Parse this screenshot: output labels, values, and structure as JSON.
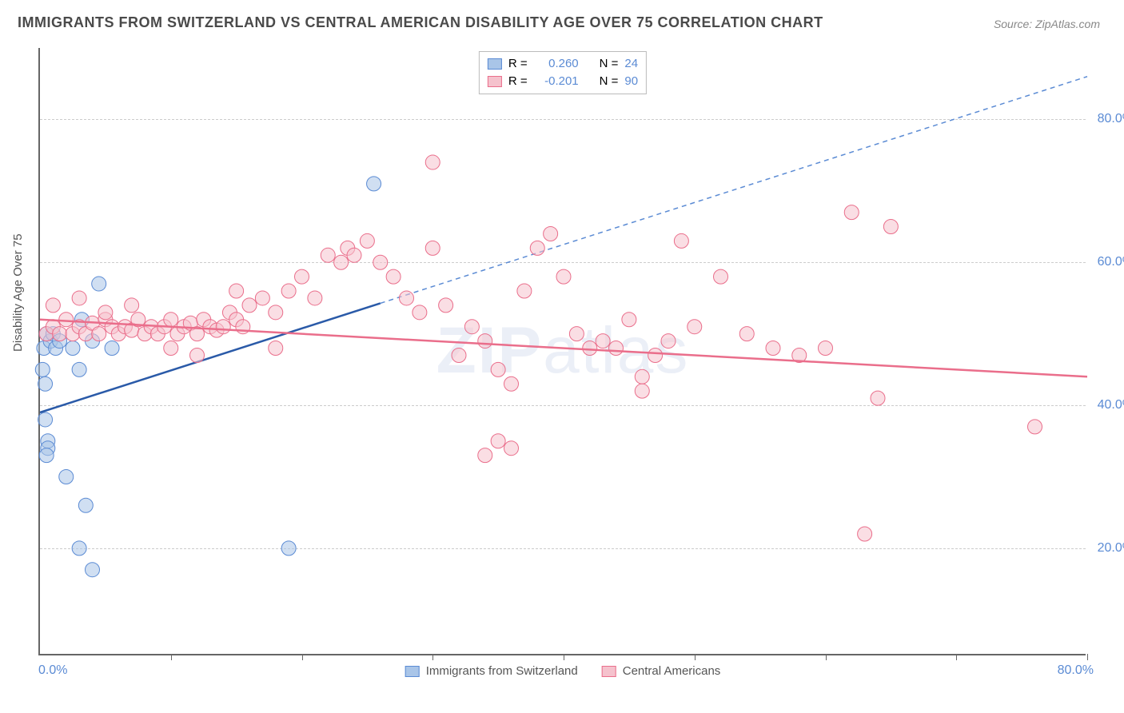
{
  "title": "IMMIGRANTS FROM SWITZERLAND VS CENTRAL AMERICAN DISABILITY AGE OVER 75 CORRELATION CHART",
  "source": "Source: ZipAtlas.com",
  "watermark_a": "ZIP",
  "watermark_b": "atlas",
  "ylabel": "Disability Age Over 75",
  "chart": {
    "type": "scatter",
    "background_color": "#ffffff",
    "grid_color": "#cccccc",
    "axis_color": "#666666",
    "tick_label_color": "#5b8bd4",
    "xlim": [
      0,
      80
    ],
    "ylim": [
      5,
      90
    ],
    "xticks_minor": [
      10,
      20,
      30,
      40,
      50,
      60,
      70,
      80
    ],
    "xtick_labels": {
      "left": "0.0%",
      "right": "80.0%"
    },
    "ytick_labels": [
      {
        "v": 20,
        "label": "20.0%"
      },
      {
        "v": 40,
        "label": "40.0%"
      },
      {
        "v": 60,
        "label": "60.0%"
      },
      {
        "v": 80,
        "label": "80.0%"
      }
    ],
    "marker_radius": 9,
    "marker_opacity": 0.55,
    "series": [
      {
        "name": "Immigrants from Switzerland",
        "short": "switzerland",
        "fill": "#a9c5e8",
        "stroke": "#5b8bd4",
        "R": "0.260",
        "N": "24",
        "points": [
          [
            0.3,
            48
          ],
          [
            0.5,
            50
          ],
          [
            0.8,
            49
          ],
          [
            1.0,
            50
          ],
          [
            0.2,
            45
          ],
          [
            0.4,
            43
          ],
          [
            1.2,
            48
          ],
          [
            1.5,
            49
          ],
          [
            0.6,
            35
          ],
          [
            0.6,
            34
          ],
          [
            0.5,
            33
          ],
          [
            2.0,
            30
          ],
          [
            3.5,
            26
          ],
          [
            3.0,
            20
          ],
          [
            4.0,
            17
          ],
          [
            2.5,
            48
          ],
          [
            4.0,
            49
          ],
          [
            5.5,
            48
          ],
          [
            3.0,
            45
          ],
          [
            4.5,
            57
          ],
          [
            3.2,
            52
          ],
          [
            0.4,
            38
          ],
          [
            25.5,
            71
          ],
          [
            19.0,
            20
          ]
        ],
        "trend": {
          "x1": 0,
          "y1": 39,
          "x2": 26,
          "y2": 50,
          "x2_ext": 80,
          "y2_ext": 86,
          "width": 2.5,
          "dash_after": 26
        }
      },
      {
        "name": "Central Americans",
        "short": "central",
        "fill": "#f5c2cd",
        "stroke": "#ea6e8b",
        "R": "-0.201",
        "N": "90",
        "points": [
          [
            0.5,
            50
          ],
          [
            1,
            51
          ],
          [
            1.5,
            50
          ],
          [
            2,
            52
          ],
          [
            2.5,
            50
          ],
          [
            3,
            51
          ],
          [
            3.5,
            50
          ],
          [
            4,
            51.5
          ],
          [
            4.5,
            50
          ],
          [
            5,
            52
          ],
          [
            5.5,
            51
          ],
          [
            6,
            50
          ],
          [
            6.5,
            51
          ],
          [
            7,
            50.5
          ],
          [
            7.5,
            52
          ],
          [
            8,
            50
          ],
          [
            8.5,
            51
          ],
          [
            9,
            50
          ],
          [
            9.5,
            51
          ],
          [
            10,
            52
          ],
          [
            10.5,
            50
          ],
          [
            11,
            51
          ],
          [
            11.5,
            51.5
          ],
          [
            12,
            50
          ],
          [
            12.5,
            52
          ],
          [
            13,
            51
          ],
          [
            13.5,
            50.5
          ],
          [
            14,
            51
          ],
          [
            14.5,
            53
          ],
          [
            15,
            52
          ],
          [
            15.5,
            51
          ],
          [
            16,
            54
          ],
          [
            17,
            55
          ],
          [
            18,
            53
          ],
          [
            19,
            56
          ],
          [
            20,
            58
          ],
          [
            21,
            55
          ],
          [
            22,
            61
          ],
          [
            23,
            60
          ],
          [
            23.5,
            62
          ],
          [
            24,
            61
          ],
          [
            25,
            63
          ],
          [
            26,
            60
          ],
          [
            27,
            58
          ],
          [
            28,
            55
          ],
          [
            29,
            53
          ],
          [
            30,
            62
          ],
          [
            31,
            54
          ],
          [
            32,
            47
          ],
          [
            33,
            51
          ],
          [
            34,
            49
          ],
          [
            35,
            45
          ],
          [
            36,
            43
          ],
          [
            37,
            56
          ],
          [
            38,
            62
          ],
          [
            39,
            64
          ],
          [
            40,
            58
          ],
          [
            41,
            50
          ],
          [
            42,
            48
          ],
          [
            35,
            35
          ],
          [
            36,
            34
          ],
          [
            34,
            33
          ],
          [
            43,
            49
          ],
          [
            44,
            48
          ],
          [
            45,
            52
          ],
          [
            46,
            44
          ],
          [
            46,
            42
          ],
          [
            47,
            47
          ],
          [
            48,
            49
          ],
          [
            49,
            63
          ],
          [
            50,
            51
          ],
          [
            52,
            58
          ],
          [
            54,
            50
          ],
          [
            56,
            48
          ],
          [
            58,
            47
          ],
          [
            30,
            74
          ],
          [
            62,
            67
          ],
          [
            65,
            65
          ],
          [
            64,
            41
          ],
          [
            63,
            22
          ],
          [
            1,
            54
          ],
          [
            3,
            55
          ],
          [
            5,
            53
          ],
          [
            7,
            54
          ],
          [
            10,
            48
          ],
          [
            12,
            47
          ],
          [
            15,
            56
          ],
          [
            18,
            48
          ],
          [
            76,
            37
          ],
          [
            60,
            48
          ]
        ],
        "trend": {
          "x1": 0,
          "y1": 52,
          "x2": 80,
          "y2": 44,
          "width": 2.5
        }
      }
    ],
    "legend_top": {
      "R_label": "R =",
      "N_label": "N ="
    },
    "legend_bottom_labels": [
      "Immigrants from Switzerland",
      "Central Americans"
    ]
  }
}
